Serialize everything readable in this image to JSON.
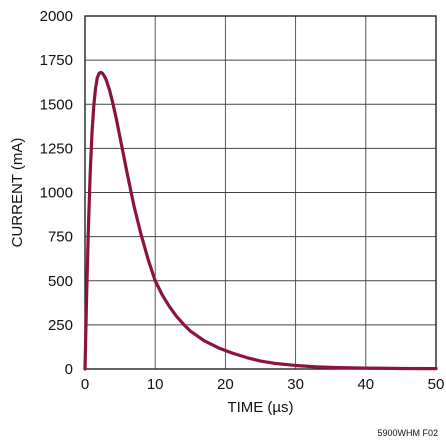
{
  "chart_data": {
    "type": "line",
    "xlabel": "TIME (µs)",
    "ylabel": "CURRENT (mA)",
    "xlim": [
      0,
      50
    ],
    "ylim": [
      0,
      2000
    ],
    "x_ticks": [
      "0",
      "10",
      "20",
      "30",
      "40",
      "50"
    ],
    "y_ticks": [
      "0",
      "250",
      "500",
      "750",
      "1000",
      "1250",
      "1500",
      "1750",
      "2000"
    ],
    "grid": true,
    "line_color": "#8b1538",
    "series": [
      {
        "x": [
          0,
          0.25,
          0.5,
          0.75,
          1.0,
          1.25,
          1.5,
          1.75,
          2.0,
          2.25,
          2.5,
          2.75,
          3.0,
          3.5,
          4.0,
          4.5,
          5.0,
          6.0,
          7.0,
          8.0,
          9.0,
          10.0,
          11.0,
          12.0,
          13.0,
          14.0,
          15.0,
          17.0,
          19.0,
          21.0,
          23.0,
          25.0,
          27.0,
          30.0,
          33.0,
          36.0,
          40.0,
          45.0,
          50.0
        ],
        "y": [
          0,
          450,
          820,
          1120,
          1340,
          1490,
          1590,
          1650,
          1675,
          1680,
          1675,
          1660,
          1640,
          1580,
          1500,
          1410,
          1310,
          1110,
          920,
          760,
          620,
          500,
          420,
          355,
          300,
          255,
          215,
          160,
          120,
          90,
          65,
          45,
          32,
          20,
          12,
          8,
          5,
          3,
          2
        ]
      }
    ]
  },
  "figure_id": "5900WHM F02"
}
